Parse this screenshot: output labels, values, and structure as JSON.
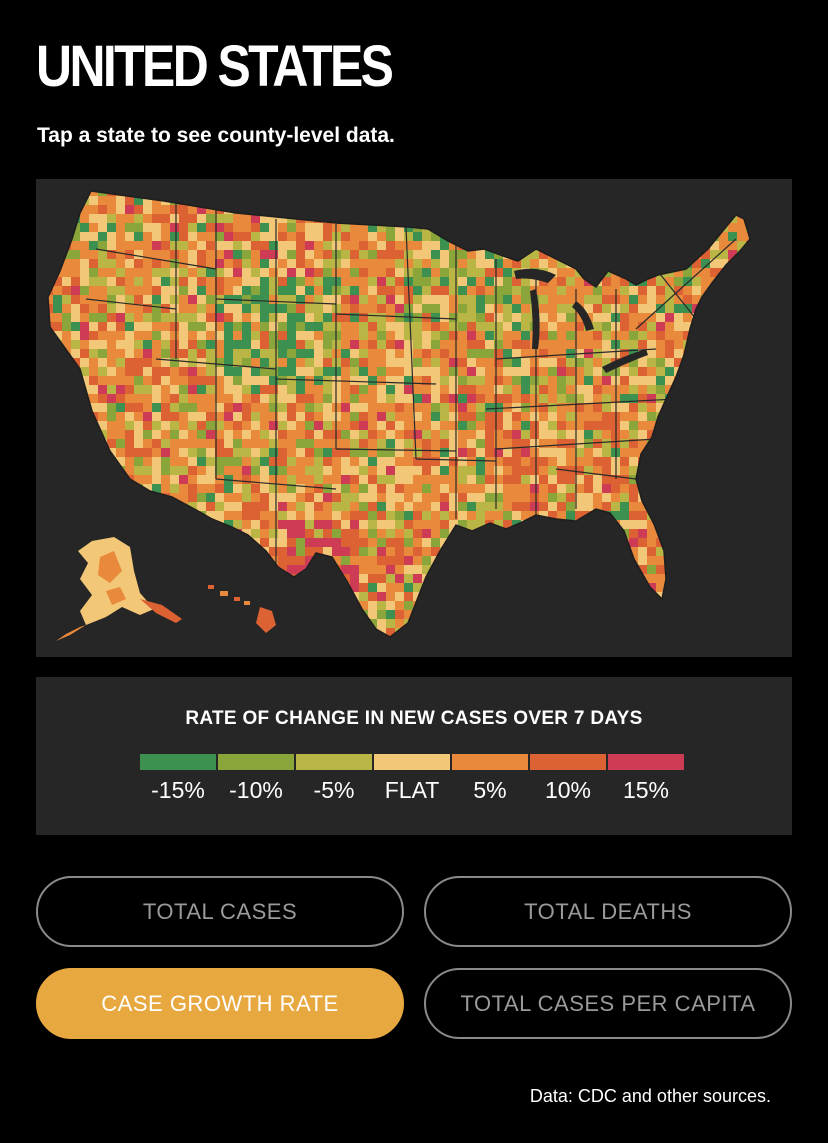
{
  "header": {
    "title": "UNITED STATES",
    "subtitle": "Tap a state to see county-level data."
  },
  "map": {
    "name": "us-county-case-growth-map",
    "colors": {
      "background": "#262626",
      "border": "#2a2a2a"
    }
  },
  "legend": {
    "title": "RATE OF CHANGE IN NEW CASES OVER 7 DAYS",
    "bins": [
      {
        "label": "-15%",
        "color": "#3d9150"
      },
      {
        "label": "-10%",
        "color": "#8aa53a"
      },
      {
        "label": "-5%",
        "color": "#b9b646"
      },
      {
        "label": "FLAT",
        "color": "#f2c777"
      },
      {
        "label": "5%",
        "color": "#e8893c"
      },
      {
        "label": "10%",
        "color": "#dc6133"
      },
      {
        "label": "15%",
        "color": "#cd3b55"
      }
    ]
  },
  "metric_buttons": [
    {
      "label": "TOTAL CASES",
      "active": false
    },
    {
      "label": "TOTAL DEATHS",
      "active": false
    },
    {
      "label": "CASE GROWTH RATE",
      "active": true
    },
    {
      "label": "TOTAL CASES PER CAPITA",
      "active": false
    }
  ],
  "footer": {
    "source": "Data: CDC and other sources."
  }
}
